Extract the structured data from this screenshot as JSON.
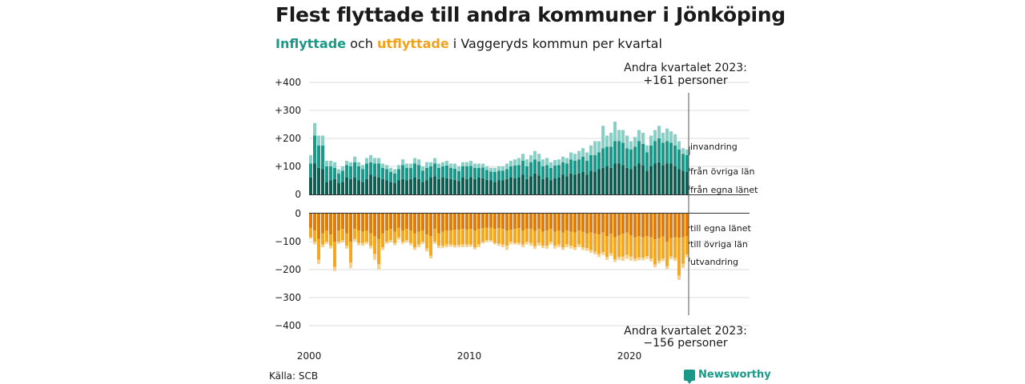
{
  "title": "Flest flyttade till andra kommuner i Jönköping",
  "subtitle": {
    "in_word": "Inflyttade",
    "and_word": "och",
    "out_word": "utflyttade",
    "rest": "i Vaggeryds  kommun  per  kvartal"
  },
  "source": "Källa: SCB",
  "logo": {
    "name": "Newsworthy",
    "icon": "chat-chart-icon"
  },
  "colors": {
    "in_own_county": "#0e5e52",
    "in_other_counties": "#1a9988",
    "in_immigration": "#88d0c5",
    "out_own_county": "#e07b0c",
    "out_other_counties": "#f5a623",
    "out_emigration": "#f8d08d"
  },
  "annotations": {
    "top_line1": "Andra kvartalet 2023:",
    "top_line2": "+161 personer",
    "bottom_line1": "Andra kvartalet 2023:",
    "bottom_line2": "−156 personer"
  },
  "chart_data": {
    "type": "bar",
    "stacked": true,
    "diverging": true,
    "x_start": "2000 Q1",
    "x_end": "2023 Q2",
    "x_tick_labels": [
      "2000",
      "2010",
      "2020"
    ],
    "ylim_in": [
      0,
      400
    ],
    "y_ticks_in": [
      "0",
      "+100",
      "+200",
      "+300",
      "+400"
    ],
    "ylim_out": [
      -400,
      0
    ],
    "y_ticks_out": [
      "0",
      "−100",
      "−200",
      "−300",
      "−400"
    ],
    "grid": true,
    "series_in": [
      {
        "name": "från egna länet",
        "values": [
          60,
          110,
          95,
          90,
          45,
          50,
          55,
          40,
          45,
          60,
          55,
          60,
          50,
          45,
          55,
          70,
          65,
          60,
          55,
          50,
          45,
          40,
          50,
          55,
          50,
          55,
          60,
          55,
          45,
          50,
          60,
          65,
          55,
          60,
          58,
          55,
          52,
          48,
          60,
          55,
          62,
          55,
          60,
          58,
          52,
          50,
          45,
          50,
          50,
          55,
          60,
          58,
          60,
          70,
          55,
          65,
          75,
          68,
          55,
          60,
          50,
          58,
          60,
          70,
          65,
          75,
          70,
          75,
          80,
          70,
          85,
          80,
          90,
          95,
          100,
          95,
          110,
          110,
          105,
          95,
          90,
          100,
          110,
          105,
          85,
          100,
          110,
          115,
          105,
          110,
          110,
          100,
          90,
          85,
          80
        ]
      },
      {
        "name": "från övriga län",
        "values": [
          50,
          100,
          80,
          85,
          55,
          50,
          40,
          35,
          40,
          45,
          45,
          55,
          50,
          45,
          55,
          45,
          45,
          50,
          40,
          40,
          35,
          35,
          40,
          50,
          45,
          40,
          50,
          50,
          40,
          45,
          40,
          45,
          40,
          40,
          45,
          40,
          40,
          35,
          40,
          45,
          40,
          40,
          35,
          38,
          35,
          32,
          35,
          35,
          35,
          35,
          40,
          45,
          45,
          50,
          45,
          50,
          50,
          50,
          45,
          45,
          45,
          45,
          45,
          45,
          45,
          50,
          50,
          50,
          55,
          50,
          55,
          60,
          60,
          70,
          70,
          75,
          80,
          80,
          80,
          70,
          70,
          70,
          80,
          75,
          65,
          75,
          80,
          85,
          80,
          80,
          75,
          75,
          70,
          60,
          60
        ]
      },
      {
        "name": "invandring",
        "values": [
          30,
          45,
          35,
          35,
          20,
          20,
          20,
          15,
          15,
          15,
          15,
          20,
          15,
          15,
          20,
          25,
          20,
          20,
          15,
          15,
          15,
          15,
          15,
          20,
          15,
          15,
          20,
          20,
          15,
          20,
          15,
          20,
          15,
          15,
          17,
          15,
          18,
          17,
          15,
          15,
          18,
          15,
          15,
          14,
          13,
          13,
          15,
          15,
          15,
          20,
          20,
          22,
          25,
          25,
          25,
          25,
          30,
          27,
          25,
          25,
          20,
          20,
          20,
          20,
          20,
          25,
          25,
          30,
          30,
          30,
          35,
          50,
          40,
          80,
          40,
          50,
          70,
          40,
          45,
          45,
          30,
          35,
          40,
          40,
          25,
          35,
          40,
          45,
          35,
          45,
          40,
          40,
          30,
          20,
          20
        ]
      }
    ],
    "series_out": [
      {
        "name": "till egna länet",
        "values": [
          50,
          60,
          90,
          70,
          60,
          75,
          100,
          60,
          55,
          70,
          100,
          55,
          60,
          65,
          60,
          70,
          80,
          90,
          70,
          60,
          55,
          65,
          50,
          60,
          55,
          60,
          70,
          65,
          60,
          75,
          80,
          55,
          70,
          65,
          60,
          60,
          58,
          57,
          55,
          57,
          55,
          60,
          55,
          52,
          50,
          50,
          55,
          52,
          55,
          60,
          58,
          55,
          52,
          60,
          55,
          55,
          62,
          55,
          65,
          60,
          55,
          65,
          60,
          68,
          60,
          65,
          68,
          60,
          65,
          70,
          68,
          72,
          75,
          68,
          80,
          72,
          85,
          78,
          72,
          68,
          78,
          85,
          80,
          85,
          80,
          85,
          92,
          88,
          82,
          100,
          88,
          85,
          86,
          84,
          80
        ]
      },
      {
        "name": "till övriga län",
        "values": [
          35,
          40,
          75,
          40,
          40,
          40,
          90,
          40,
          40,
          45,
          75,
          35,
          45,
          40,
          40,
          45,
          65,
          90,
          50,
          40,
          40,
          40,
          35,
          40,
          40,
          45,
          50,
          45,
          40,
          50,
          70,
          45,
          45,
          50,
          50,
          50,
          55,
          55,
          55,
          53,
          55,
          60,
          55,
          48,
          45,
          45,
          50,
          55,
          55,
          55,
          42,
          50,
          52,
          50,
          45,
          50,
          54,
          50,
          50,
          55,
          45,
          50,
          50,
          52,
          50,
          50,
          52,
          50,
          55,
          53,
          62,
          64,
          70,
          70,
          75,
          70,
          78,
          77,
          82,
          79,
          75,
          75,
          77,
          72,
          72,
          76,
          90,
          80,
          78,
          88,
          65,
          74,
          136,
          95,
          66
        ]
      },
      {
        "name": "utvandring",
        "values": [
          5,
          10,
          15,
          10,
          8,
          10,
          15,
          8,
          8,
          10,
          20,
          8,
          8,
          10,
          8,
          10,
          20,
          20,
          10,
          8,
          8,
          8,
          8,
          8,
          8,
          8,
          10,
          10,
          8,
          10,
          10,
          8,
          8,
          8,
          10,
          8,
          8,
          8,
          10,
          10,
          8,
          8,
          10,
          7,
          7,
          5,
          5,
          8,
          10,
          15,
          10,
          5,
          8,
          10,
          10,
          10,
          10,
          10,
          8,
          10,
          10,
          10,
          10,
          10,
          10,
          10,
          10,
          10,
          10,
          10,
          10,
          10,
          10,
          10,
          10,
          10,
          10,
          10,
          15,
          15,
          15,
          10,
          10,
          10,
          10,
          10,
          10,
          10,
          10,
          10,
          10,
          10,
          15,
          15,
          10
        ]
      }
    ],
    "category_labels_in": [
      "invandring",
      "från övriga län",
      "från egna länet"
    ],
    "category_labels_out": [
      "till egna länet",
      "till övriga län",
      "utvandring"
    ]
  }
}
